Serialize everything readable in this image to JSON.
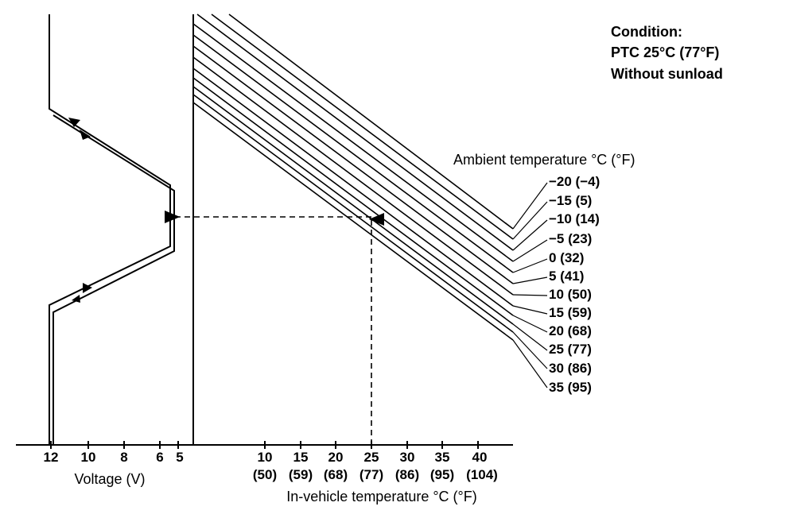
{
  "condition": {
    "title": "Condition:",
    "line1": "PTC 25°C (77°F)",
    "line2": "Without sunload"
  },
  "ambient_header": "Ambient temperature °C (°F)",
  "ambient_labels": [
    "−20 (−4)",
    "−15 (5)",
    "−10 (14)",
    "−5 (23)",
    "0 (32)",
    "5 (41)",
    "10 (50)",
    "15 (59)",
    "20 (68)",
    "25 (77)",
    "30 (86)",
    "35 (95)"
  ],
  "voltage_axis": {
    "ticks": [
      "12",
      "10",
      "8",
      "6",
      "5"
    ],
    "label": "Voltage (V)"
  },
  "invehicle_axis": {
    "ticks_c": [
      "10",
      "15",
      "20",
      "25",
      "30",
      "35",
      "40"
    ],
    "ticks_f": [
      "(50)",
      "(59)",
      "(68)",
      "(77)",
      "(86)",
      "(95)",
      "(104)"
    ],
    "label": "In-vehicle temperature °C (°F)"
  }
}
